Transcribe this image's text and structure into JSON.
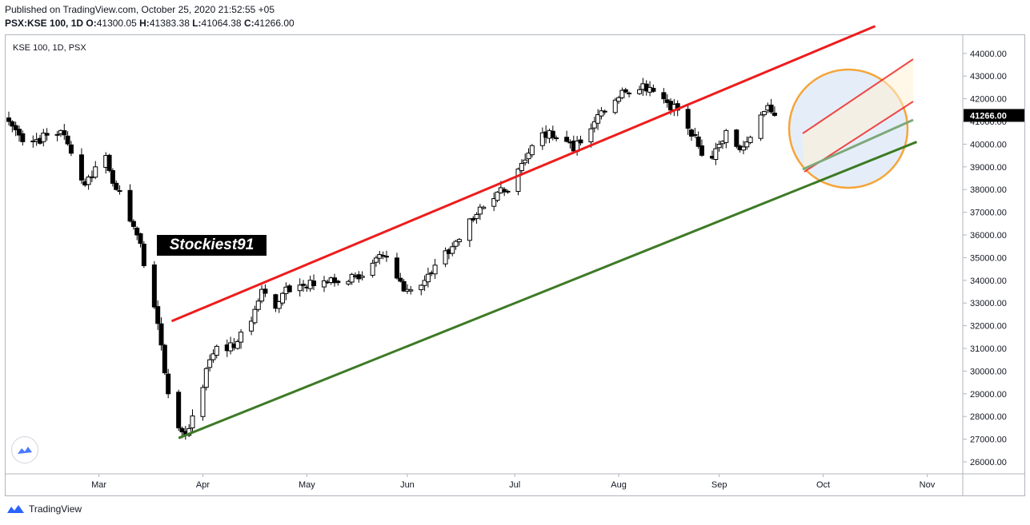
{
  "header": {
    "published": "Published on TradingView.com, October 25, 2020 21:52:55 +05",
    "symbol_line": "PSX:KSE 100, 1D",
    "o_label": "O:",
    "o_value": "41300.05",
    "h_label": "H:",
    "h_value": "41383.38",
    "l_label": "L:",
    "l_value": "41064.38",
    "c_label": "C:",
    "c_value": "41266.00"
  },
  "chart_label": "KSE 100, 1D, PSX",
  "watermark_text": "Stockiest91",
  "footer": {
    "brand": "TradingView"
  },
  "colors": {
    "resistance": "#ee1c1c",
    "support": "#3d7a25",
    "circle_stroke": "#f5a53a",
    "circle_fill": "#dce8f6",
    "candle_up": "#ffffff",
    "candle_down": "#000000"
  },
  "chart_data": {
    "type": "candlestick",
    "title": "KSE 100, 1D, PSX",
    "ylim": [
      25500,
      44700
    ],
    "y_ticks": [
      "26000.00",
      "27000.00",
      "28000.00",
      "29000.00",
      "30000.00",
      "31000.00",
      "32000.00",
      "33000.00",
      "34000.00",
      "35000.00",
      "36000.00",
      "37000.00",
      "38000.00",
      "39000.00",
      "40000.00",
      "41000.00",
      "42000.00",
      "43000.00",
      "44000.00"
    ],
    "x_ticks": [
      {
        "label": "Mar",
        "day": 26
      },
      {
        "label": "Apr",
        "day": 56
      },
      {
        "label": "May",
        "day": 86
      },
      {
        "label": "Jun",
        "day": 115
      },
      {
        "label": "Jul",
        "day": 146
      },
      {
        "label": "Aug",
        "day": 176
      },
      {
        "label": "Sep",
        "day": 205
      },
      {
        "label": "Oct",
        "day": 235
      },
      {
        "label": "Nov",
        "day": 265
      }
    ],
    "last_price": "41266.00",
    "anchors": [
      {
        "day": 0,
        "close": 41000
      },
      {
        "day": 3,
        "close": 40400
      },
      {
        "day": 6,
        "close": 40100
      },
      {
        "day": 12,
        "close": 40400
      },
      {
        "day": 15,
        "close": 40600
      },
      {
        "day": 18,
        "close": 39600
      },
      {
        "day": 22,
        "close": 38200
      },
      {
        "day": 25,
        "close": 39000
      },
      {
        "day": 28,
        "close": 39500
      },
      {
        "day": 31,
        "close": 38000
      },
      {
        "day": 34,
        "close": 37200
      },
      {
        "day": 37,
        "close": 36000
      },
      {
        "day": 40,
        "close": 34200
      },
      {
        "day": 43,
        "close": 32100
      },
      {
        "day": 46,
        "close": 29000
      },
      {
        "day": 49,
        "close": 27500
      },
      {
        "day": 51,
        "close": 27200
      },
      {
        "day": 54,
        "close": 28400
      },
      {
        "day": 58,
        "close": 30500
      },
      {
        "day": 61,
        "close": 31500
      },
      {
        "day": 63,
        "close": 30900
      },
      {
        "day": 66,
        "close": 31300
      },
      {
        "day": 70,
        "close": 32200
      },
      {
        "day": 73,
        "close": 33600
      },
      {
        "day": 76,
        "close": 32700
      },
      {
        "day": 80,
        "close": 33700
      },
      {
        "day": 86,
        "close": 33700
      },
      {
        "day": 90,
        "close": 34000
      },
      {
        "day": 95,
        "close": 33900
      },
      {
        "day": 100,
        "close": 34200
      },
      {
        "day": 104,
        "close": 34400
      },
      {
        "day": 108,
        "close": 35100
      },
      {
        "day": 112,
        "close": 34100
      },
      {
        "day": 115,
        "close": 33600
      },
      {
        "day": 118,
        "close": 33800
      },
      {
        "day": 122,
        "close": 34300
      },
      {
        "day": 126,
        "close": 35300
      },
      {
        "day": 130,
        "close": 35800
      },
      {
        "day": 135,
        "close": 36900
      },
      {
        "day": 140,
        "close": 37600
      },
      {
        "day": 145,
        "close": 38300
      },
      {
        "day": 149,
        "close": 39300
      },
      {
        "day": 153,
        "close": 40200
      },
      {
        "day": 156,
        "close": 40600
      },
      {
        "day": 160,
        "close": 40300
      },
      {
        "day": 163,
        "close": 39700
      },
      {
        "day": 166,
        "close": 40500
      },
      {
        "day": 170,
        "close": 41300
      },
      {
        "day": 174,
        "close": 42000
      },
      {
        "day": 178,
        "close": 42300
      },
      {
        "day": 181,
        "close": 42700
      },
      {
        "day": 185,
        "close": 42500
      },
      {
        "day": 189,
        "close": 42000
      },
      {
        "day": 193,
        "close": 41500
      },
      {
        "day": 196,
        "close": 40700
      },
      {
        "day": 199,
        "close": 39900
      },
      {
        "day": 201,
        "close": 38900
      },
      {
        "day": 204,
        "close": 39800
      },
      {
        "day": 207,
        "close": 40600
      },
      {
        "day": 210,
        "close": 39900
      },
      {
        "day": 213,
        "close": 40100
      },
      {
        "day": 216,
        "close": 41000
      },
      {
        "day": 219,
        "close": 41700
      },
      {
        "day": 221,
        "close": 41266
      }
    ],
    "trendlines": [
      {
        "name": "resistance",
        "from": {
          "day": 47,
          "value": 32200
        },
        "to": {
          "day": 250,
          "value": 45200
        }
      },
      {
        "name": "support",
        "from": {
          "day": 49,
          "value": 27050
        },
        "to": {
          "day": 262,
          "value": 40100
        }
      }
    ],
    "zoom_highlight": "circle around October rebound"
  }
}
